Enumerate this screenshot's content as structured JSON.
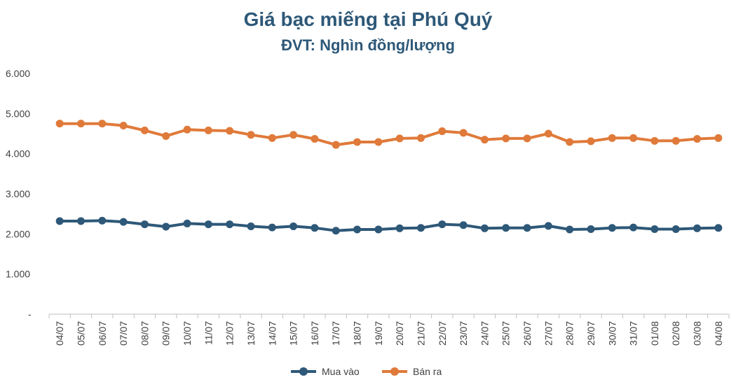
{
  "chart_data": {
    "type": "line",
    "title": "Giá bạc miếng tại Phú Quý",
    "subtitle": "ĐVT: Nghìn đồng/lượng",
    "categories": [
      "04/07",
      "05/07",
      "06/07",
      "07/07",
      "08/07",
      "09/07",
      "10/07",
      "11/07",
      "12/07",
      "13/07",
      "14/07",
      "15/07",
      "16/07",
      "17/07",
      "18/07",
      "19/07",
      "20/07",
      "21/07",
      "22/07",
      "23/07",
      "24/07",
      "25/07",
      "26/07",
      "27/07",
      "28/07",
      "29/07",
      "30/07",
      "31/07",
      "01/08",
      "02/08",
      "03/08",
      "04/08"
    ],
    "ylim": [
      0,
      6000
    ],
    "yticks": [
      {
        "value": 0,
        "label": "-"
      },
      {
        "value": 1000,
        "label": "1.000"
      },
      {
        "value": 2000,
        "label": "2.000"
      },
      {
        "value": 3000,
        "label": "3.000"
      },
      {
        "value": 4000,
        "label": "4.000"
      },
      {
        "value": 5000,
        "label": "5.000"
      },
      {
        "value": 6000,
        "label": "6.000"
      }
    ],
    "grid": false,
    "legend_position": "bottom",
    "series": [
      {
        "name": "Mua vào",
        "color": "#2e5878",
        "values": [
          2320,
          2320,
          2330,
          2300,
          2240,
          2180,
          2260,
          2240,
          2240,
          2190,
          2160,
          2190,
          2150,
          2080,
          2110,
          2110,
          2140,
          2150,
          2240,
          2220,
          2140,
          2150,
          2150,
          2200,
          2110,
          2120,
          2150,
          2160,
          2120,
          2120,
          2140,
          2150
        ]
      },
      {
        "name": "Bán ra",
        "color": "#e07a3a",
        "values": [
          4750,
          4750,
          4750,
          4700,
          4580,
          4440,
          4600,
          4580,
          4570,
          4470,
          4390,
          4470,
          4370,
          4220,
          4290,
          4290,
          4380,
          4390,
          4560,
          4520,
          4350,
          4380,
          4380,
          4500,
          4290,
          4310,
          4390,
          4390,
          4320,
          4320,
          4370,
          4390
        ]
      }
    ]
  }
}
